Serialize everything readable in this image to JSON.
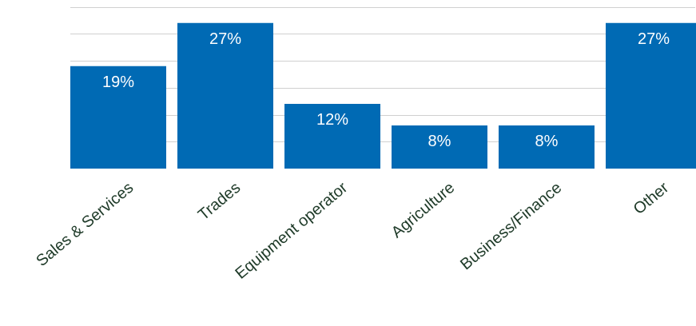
{
  "chart_data": {
    "type": "bar",
    "categories": [
      "Sales & Services",
      "Trades",
      "Equipment operator",
      "Agriculture",
      "Business/Finance",
      "Other"
    ],
    "values": [
      19,
      27,
      12,
      8,
      8,
      27
    ],
    "data_labels": [
      "19%",
      "27%",
      "12%",
      "8%",
      "8%",
      "27%"
    ],
    "title": "",
    "xlabel": "",
    "ylabel": "",
    "ylim": [
      0,
      30
    ],
    "y_gridlines": [
      5,
      10,
      15,
      20,
      25,
      30
    ],
    "grid": true,
    "legend": "none",
    "bar_color": "#006ab4",
    "label_color": "#ffffff",
    "category_label_color": "#1e3a28"
  }
}
